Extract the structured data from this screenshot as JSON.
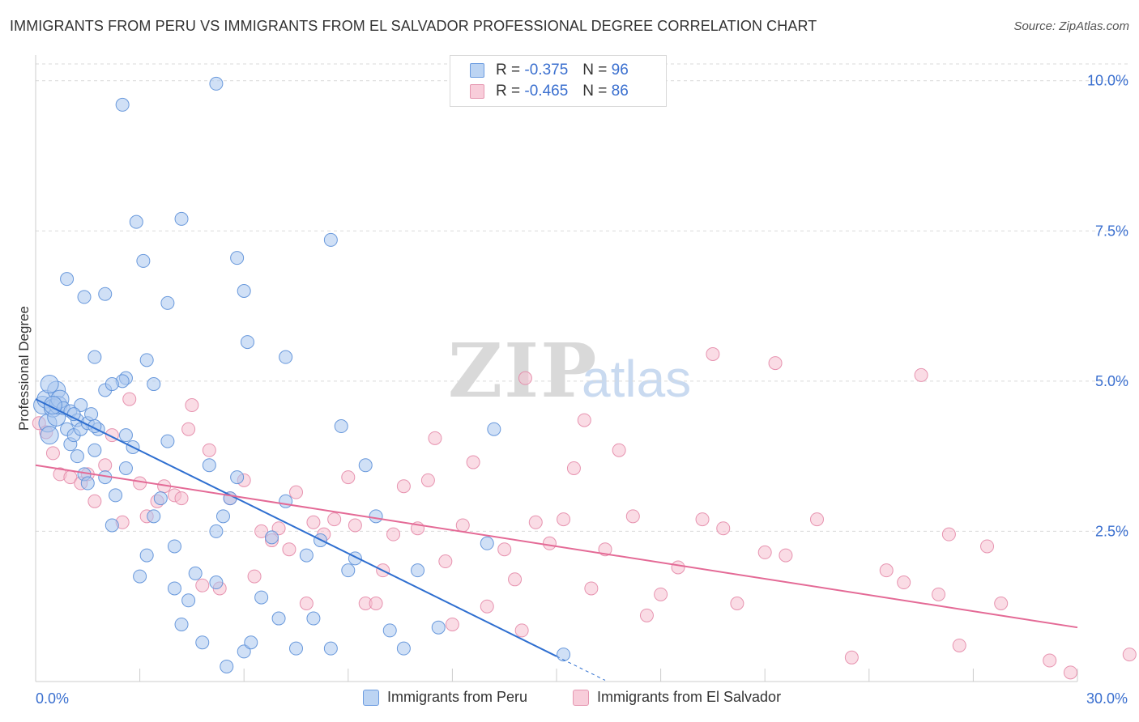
{
  "title": "IMMIGRANTS FROM PERU VS IMMIGRANTS FROM EL SALVADOR PROFESSIONAL DEGREE CORRELATION CHART",
  "source": "Source: ZipAtlas.com",
  "watermark": {
    "zip": "ZIP",
    "atlas": "atlas"
  },
  "colors": {
    "peru_fill": "#a9c6ef",
    "peru_stroke": "#5b8fd8",
    "peru_line": "#2f6fd0",
    "salv_fill": "#f6bfd0",
    "salv_stroke": "#e48aa8",
    "salv_line": "#e46a96",
    "axis_text": "#3a6fcf",
    "grid": "#d9d9d9"
  },
  "legend_top": [
    {
      "r_label": "R =",
      "r_value": "-0.375",
      "n_label": "N =",
      "n_value": "96"
    },
    {
      "r_label": "R =",
      "r_value": "-0.465",
      "n_label": "N =",
      "n_value": "86"
    }
  ],
  "chart_data": {
    "type": "scatter",
    "title": "IMMIGRANTS FROM PERU VS IMMIGRANTS FROM EL SALVADOR PROFESSIONAL DEGREE CORRELATION CHART",
    "xlabel": "",
    "ylabel": "Professional Degree",
    "xlim": [
      0,
      30
    ],
    "ylim": [
      0,
      10.4
    ],
    "x_tick_labels": [
      "0.0%",
      "30.0%"
    ],
    "y_ticks": [
      2.5,
      5.0,
      7.5,
      10.0
    ],
    "y_tick_labels": [
      "2.5%",
      "5.0%",
      "7.5%",
      "10.0%"
    ],
    "grid": true,
    "legend_position": "bottom",
    "series": [
      {
        "name": "Immigrants from Peru",
        "color": "#5b8fd8",
        "trend": {
          "x0": 0.0,
          "y0": 4.7,
          "x1": 15.0,
          "y1": 0.42,
          "dash_to_x": 16.4
        },
        "points": [
          [
            0.2,
            4.6
          ],
          [
            0.3,
            4.7
          ],
          [
            0.35,
            4.3
          ],
          [
            0.4,
            4.1
          ],
          [
            0.5,
            4.55
          ],
          [
            0.6,
            4.4
          ],
          [
            0.6,
            4.85
          ],
          [
            0.65,
            4.6
          ],
          [
            0.7,
            4.7
          ],
          [
            0.8,
            4.55
          ],
          [
            0.9,
            4.2
          ],
          [
            1.0,
            4.5
          ],
          [
            1.0,
            3.95
          ],
          [
            1.1,
            4.1
          ],
          [
            1.2,
            3.75
          ],
          [
            1.2,
            4.35
          ],
          [
            1.3,
            4.2
          ],
          [
            1.3,
            4.6
          ],
          [
            1.4,
            3.45
          ],
          [
            1.5,
            4.3
          ],
          [
            1.5,
            3.3
          ],
          [
            1.6,
            4.45
          ],
          [
            1.7,
            3.85
          ],
          [
            1.8,
            4.2
          ],
          [
            2.0,
            3.4
          ],
          [
            2.0,
            4.85
          ],
          [
            2.2,
            2.6
          ],
          [
            2.3,
            3.1
          ],
          [
            2.6,
            3.55
          ],
          [
            2.6,
            4.1
          ],
          [
            2.8,
            3.9
          ],
          [
            3.0,
            1.75
          ],
          [
            3.2,
            2.1
          ],
          [
            3.4,
            2.75
          ],
          [
            3.4,
            4.95
          ],
          [
            3.6,
            3.05
          ],
          [
            3.8,
            4.0
          ],
          [
            4.0,
            2.25
          ],
          [
            4.0,
            1.55
          ],
          [
            4.2,
            0.95
          ],
          [
            4.4,
            1.35
          ],
          [
            4.6,
            1.8
          ],
          [
            4.8,
            0.65
          ],
          [
            5.0,
            3.6
          ],
          [
            5.2,
            1.65
          ],
          [
            5.2,
            2.5
          ],
          [
            5.4,
            2.75
          ],
          [
            5.5,
            0.25
          ],
          [
            5.6,
            3.05
          ],
          [
            5.8,
            3.4
          ],
          [
            6.0,
            0.5
          ],
          [
            6.2,
            0.65
          ],
          [
            6.5,
            1.4
          ],
          [
            6.8,
            2.4
          ],
          [
            7.0,
            1.05
          ],
          [
            7.2,
            3.0
          ],
          [
            7.5,
            0.55
          ],
          [
            7.8,
            2.1
          ],
          [
            8.0,
            1.05
          ],
          [
            8.2,
            2.35
          ],
          [
            8.5,
            0.55
          ],
          [
            8.8,
            4.25
          ],
          [
            9.0,
            1.85
          ],
          [
            9.2,
            2.05
          ],
          [
            9.5,
            3.6
          ],
          [
            9.8,
            2.75
          ],
          [
            10.2,
            0.85
          ],
          [
            10.6,
            0.55
          ],
          [
            11.0,
            1.85
          ],
          [
            11.6,
            0.9
          ],
          [
            13.0,
            2.3
          ],
          [
            13.2,
            4.2
          ],
          [
            15.2,
            0.45
          ],
          [
            2.5,
            9.6
          ],
          [
            5.2,
            9.95
          ],
          [
            2.9,
            7.65
          ],
          [
            4.2,
            7.7
          ],
          [
            3.1,
            7.0
          ],
          [
            5.8,
            7.05
          ],
          [
            6.0,
            6.5
          ],
          [
            0.9,
            6.7
          ],
          [
            1.4,
            6.4
          ],
          [
            2.0,
            6.45
          ],
          [
            3.8,
            6.3
          ],
          [
            6.1,
            5.65
          ],
          [
            7.2,
            5.4
          ],
          [
            1.7,
            5.4
          ],
          [
            3.2,
            5.35
          ],
          [
            2.6,
            5.05
          ],
          [
            2.5,
            5.0
          ],
          [
            8.5,
            7.35
          ],
          [
            0.4,
            4.95
          ],
          [
            1.1,
            4.45
          ],
          [
            1.7,
            4.25
          ],
          [
            2.2,
            4.95
          ],
          [
            0.5,
            4.6
          ]
        ]
      },
      {
        "name": "Immigrants from El Salvador",
        "color": "#e48aa8",
        "trend": {
          "x0": 0.0,
          "y0": 3.6,
          "x1": 30.0,
          "y1": 0.9
        },
        "points": [
          [
            0.1,
            4.3
          ],
          [
            0.3,
            4.15
          ],
          [
            0.5,
            3.8
          ],
          [
            0.7,
            3.45
          ],
          [
            1.0,
            3.4
          ],
          [
            1.3,
            3.3
          ],
          [
            1.5,
            3.45
          ],
          [
            1.7,
            3.0
          ],
          [
            2.0,
            3.6
          ],
          [
            2.2,
            4.1
          ],
          [
            2.5,
            2.65
          ],
          [
            2.7,
            4.7
          ],
          [
            3.0,
            3.3
          ],
          [
            3.2,
            2.75
          ],
          [
            3.5,
            3.0
          ],
          [
            3.7,
            3.25
          ],
          [
            4.0,
            3.1
          ],
          [
            4.2,
            3.05
          ],
          [
            4.4,
            4.2
          ],
          [
            4.5,
            4.6
          ],
          [
            4.8,
            1.6
          ],
          [
            5.0,
            3.85
          ],
          [
            5.3,
            1.55
          ],
          [
            5.6,
            3.05
          ],
          [
            6.0,
            3.35
          ],
          [
            6.3,
            1.75
          ],
          [
            6.5,
            2.5
          ],
          [
            6.8,
            2.35
          ],
          [
            7.0,
            2.55
          ],
          [
            7.3,
            2.2
          ],
          [
            7.5,
            3.15
          ],
          [
            7.8,
            1.3
          ],
          [
            8.0,
            2.65
          ],
          [
            8.3,
            2.45
          ],
          [
            8.6,
            2.7
          ],
          [
            9.0,
            3.4
          ],
          [
            9.2,
            2.6
          ],
          [
            9.5,
            1.3
          ],
          [
            9.8,
            1.3
          ],
          [
            10.0,
            1.85
          ],
          [
            10.3,
            2.45
          ],
          [
            10.6,
            3.25
          ],
          [
            11.0,
            2.55
          ],
          [
            11.3,
            3.35
          ],
          [
            11.5,
            4.05
          ],
          [
            11.8,
            2.0
          ],
          [
            12.0,
            0.95
          ],
          [
            12.3,
            2.6
          ],
          [
            12.6,
            3.65
          ],
          [
            13.0,
            1.25
          ],
          [
            13.5,
            2.2
          ],
          [
            13.8,
            1.7
          ],
          [
            14.0,
            0.85
          ],
          [
            14.4,
            2.65
          ],
          [
            14.8,
            2.3
          ],
          [
            15.2,
            2.7
          ],
          [
            15.5,
            3.55
          ],
          [
            15.8,
            4.35
          ],
          [
            16.0,
            1.55
          ],
          [
            16.4,
            2.2
          ],
          [
            16.8,
            3.85
          ],
          [
            17.2,
            2.75
          ],
          [
            17.6,
            1.1
          ],
          [
            18.0,
            1.45
          ],
          [
            18.5,
            1.9
          ],
          [
            19.2,
            2.7
          ],
          [
            19.5,
            5.45
          ],
          [
            19.8,
            2.55
          ],
          [
            20.2,
            1.3
          ],
          [
            21.0,
            2.15
          ],
          [
            21.3,
            5.3
          ],
          [
            21.6,
            2.1
          ],
          [
            22.5,
            2.7
          ],
          [
            23.5,
            0.4
          ],
          [
            24.5,
            1.85
          ],
          [
            25.0,
            1.65
          ],
          [
            25.5,
            5.1
          ],
          [
            26.0,
            1.45
          ],
          [
            26.3,
            2.45
          ],
          [
            26.6,
            0.6
          ],
          [
            27.4,
            2.25
          ],
          [
            27.8,
            1.3
          ],
          [
            29.2,
            0.35
          ],
          [
            29.8,
            0.15
          ],
          [
            31.5,
            0.45
          ],
          [
            14.1,
            5.05
          ]
        ]
      }
    ]
  },
  "legend_bottom": [
    {
      "label": "Immigrants from Peru"
    },
    {
      "label": "Immigrants from El Salvador"
    }
  ]
}
